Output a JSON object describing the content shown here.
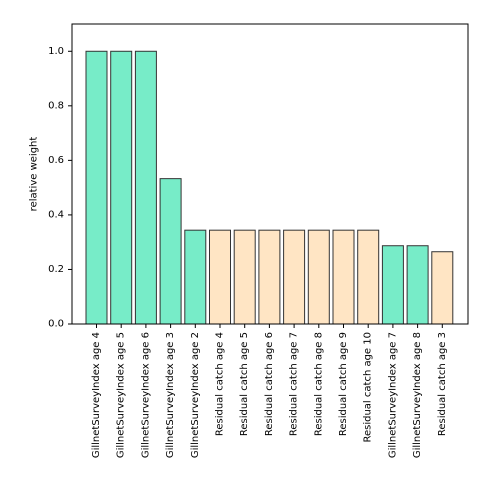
{
  "chart_data": {
    "type": "bar",
    "title": "",
    "xlabel": "",
    "ylabel": "relative weight",
    "ylim": [
      0.0,
      1.1
    ],
    "yticks": [
      0.0,
      0.2,
      0.4,
      0.6,
      0.8,
      1.0
    ],
    "ytick_labels": [
      "0.0",
      "0.2",
      "0.4",
      "0.6",
      "0.8",
      "1.0"
    ],
    "grid": false,
    "categories": [
      "GillnetSurveyIndex age 4",
      "GillnetSurveyIndex age 5",
      "GillnetSurveyIndex age 6",
      "GillnetSurveyIndex age 3",
      "GillnetSurveyIndex age 2",
      "Residual catch age 4",
      "Residual catch age 5",
      "Residual catch age 6",
      "Residual catch age 7",
      "Residual catch age 8",
      "Residual catch age 9",
      "Residual catch age 10",
      "GillnetSurveyIndex age 7",
      "GillnetSurveyIndex age 8",
      "Residual catch age 3"
    ],
    "values": [
      1.0,
      1.0,
      1.0,
      0.533,
      0.344,
      0.344,
      0.344,
      0.344,
      0.344,
      0.344,
      0.344,
      0.344,
      0.287,
      0.287,
      0.265
    ],
    "bar_colors": [
      "#77ecc8",
      "#77ecc8",
      "#77ecc8",
      "#77ecc8",
      "#77ecc8",
      "#ffe5c4",
      "#ffe5c4",
      "#ffe5c4",
      "#ffe5c4",
      "#ffe5c4",
      "#ffe5c4",
      "#ffe5c4",
      "#77ecc8",
      "#77ecc8",
      "#ffe5c4"
    ],
    "edge_color": "#333333"
  }
}
